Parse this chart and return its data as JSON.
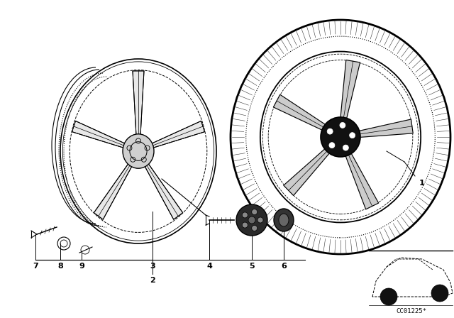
{
  "background_color": "#ffffff",
  "line_color": "#000000",
  "part_code": "CC01225*"
}
